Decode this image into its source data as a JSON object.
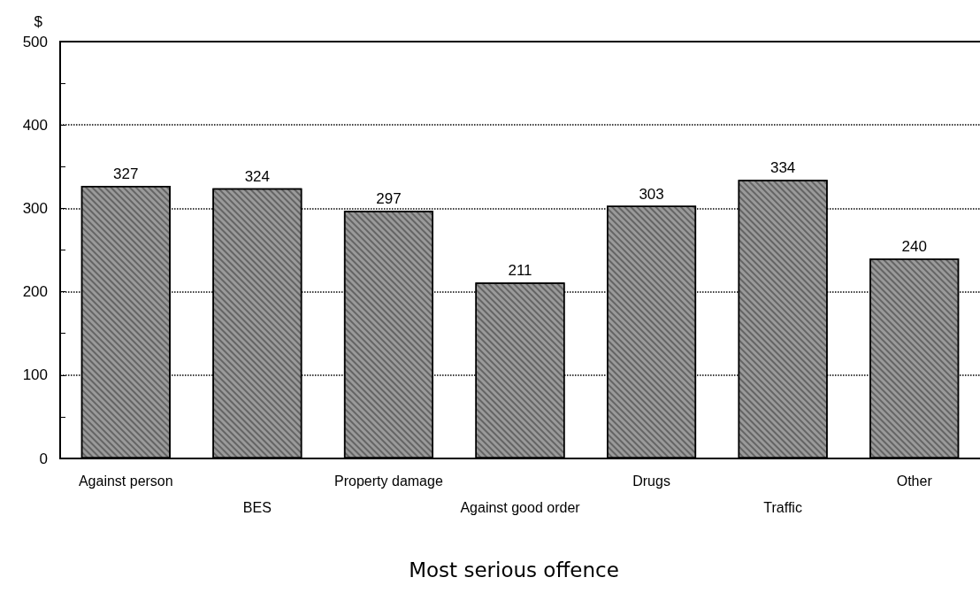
{
  "chart_data": {
    "type": "bar",
    "xlabel": "Most serious offence",
    "ylabel": "$",
    "categories": [
      "Against person",
      "BES",
      "Property damage",
      "Against good order",
      "Drugs",
      "Traffic",
      "Other"
    ],
    "values": [
      327,
      324,
      297,
      211,
      303,
      334,
      240
    ],
    "color": "#9a9a9a",
    "ylim": [
      0,
      500
    ],
    "yticks": [
      0,
      100,
      200,
      300,
      400,
      500
    ],
    "grid": "y",
    "data_labels": true
  }
}
